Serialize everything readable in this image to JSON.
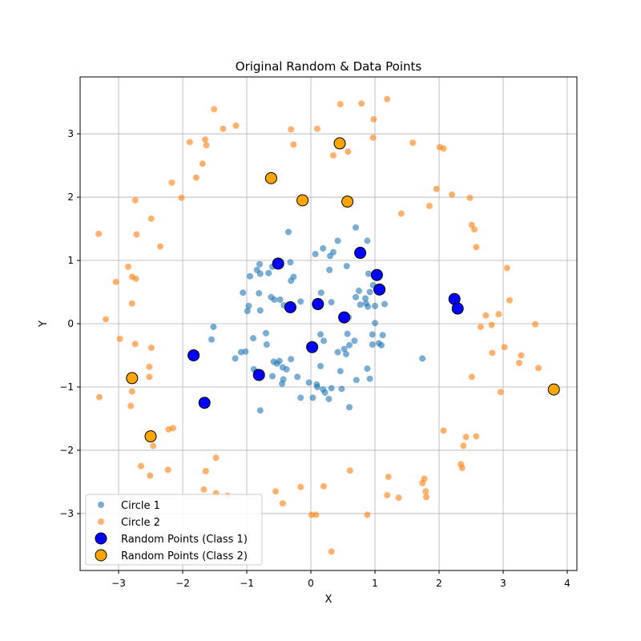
{
  "chart_data": {
    "type": "scatter",
    "title": "Original Random & Data Points",
    "xlabel": "X",
    "ylabel": "Y",
    "xlim": [
      -3.6,
      4.15
    ],
    "ylim": [
      -3.9,
      3.9
    ],
    "xticks": [
      -3,
      -2,
      -1,
      0,
      1,
      2,
      3,
      4
    ],
    "yticks": [
      -3,
      -2,
      -1,
      0,
      1,
      2,
      3
    ],
    "grid": true,
    "legend_position": "lower-left",
    "colors": {
      "circle1": "#1f77b4",
      "circle2": "#ff7f0e",
      "random_class1": "#0000ff",
      "random_class2": "#ffa500"
    },
    "series": [
      {
        "name": "Circle 1",
        "points": [
          [
            -0.8,
            0.94
          ],
          [
            -0.84,
            0.85
          ],
          [
            -0.79,
            0.79
          ],
          [
            -0.66,
            0.8
          ],
          [
            -0.6,
            0.9
          ],
          [
            -0.51,
            0.98
          ],
          [
            -0.32,
            0.97
          ],
          [
            -0.35,
            1.45
          ],
          [
            -0.27,
            0.74
          ],
          [
            -0.31,
            0.68
          ],
          [
            -1.06,
            0.49
          ],
          [
            -0.95,
            0.75
          ],
          [
            -0.97,
            0.28
          ],
          [
            -0.81,
            0.48
          ],
          [
            -0.62,
            0.42
          ],
          [
            -0.57,
            0.38
          ],
          [
            -0.48,
            0.38
          ],
          [
            -0.42,
            0.29
          ],
          [
            -0.16,
            0.35
          ],
          [
            -0.79,
            0.21
          ],
          [
            -0.99,
            0.2
          ],
          [
            -0.9,
            -0.23
          ],
          [
            -0.7,
            -0.15
          ],
          [
            -0.69,
            -0.33
          ],
          [
            -1.52,
            -0.05
          ],
          [
            -1.55,
            -0.25
          ],
          [
            -1.18,
            -0.55
          ],
          [
            -1.09,
            -0.45
          ],
          [
            -1.02,
            -0.44
          ],
          [
            -0.89,
            -0.72
          ],
          [
            -0.85,
            -0.76
          ],
          [
            -0.58,
            -0.6
          ],
          [
            -0.49,
            -0.59
          ],
          [
            -0.53,
            -0.63
          ],
          [
            -0.44,
            -0.69
          ],
          [
            -0.38,
            -0.72
          ],
          [
            -0.31,
            -0.56
          ],
          [
            -0.6,
            -0.83
          ],
          [
            -0.43,
            -0.88
          ],
          [
            -0.21,
            -0.84
          ],
          [
            -0.79,
            -1.37
          ],
          [
            -0.16,
            -1.17
          ],
          [
            0.03,
            -1.17
          ],
          [
            -0.03,
            -0.93
          ],
          [
            0.09,
            -0.96
          ],
          [
            0.1,
            -1.0
          ],
          [
            0.19,
            -1.04
          ],
          [
            0.22,
            -1.09
          ],
          [
            0.28,
            -1.19
          ],
          [
            0.32,
            -1.02
          ],
          [
            0.48,
            -1.03
          ],
          [
            0.6,
            -1.32
          ],
          [
            0.46,
            -0.75
          ],
          [
            0.15,
            -0.67
          ],
          [
            0.15,
            -0.17
          ],
          [
            0.2,
            -0.27
          ],
          [
            0.42,
            -0.45
          ],
          [
            0.52,
            -0.4
          ],
          [
            0.55,
            -0.48
          ],
          [
            0.57,
            -0.16
          ],
          [
            0.6,
            -0.34
          ],
          [
            0.68,
            -0.27
          ],
          [
            0.71,
            -0.89
          ],
          [
            0.88,
            -0.71
          ],
          [
            0.92,
            -0.87
          ],
          [
            0.96,
            -0.17
          ],
          [
            0.96,
            -0.33
          ],
          [
            1.06,
            -0.31
          ],
          [
            1.1,
            -0.34
          ],
          [
            1.12,
            -0.18
          ],
          [
            1.74,
            -0.55
          ],
          [
            0.07,
            1.1
          ],
          [
            0.19,
            1.19
          ],
          [
            0.3,
            1.07
          ],
          [
            0.35,
            1.13
          ],
          [
            0.42,
            1.31
          ],
          [
            0.56,
            0.91
          ],
          [
            0.7,
            1.52
          ],
          [
            0.88,
            1.31
          ],
          [
            0.29,
            0.85
          ],
          [
            0.32,
            0.34
          ],
          [
            0.16,
            0.49
          ],
          [
            0.59,
            0.1
          ],
          [
            0.7,
            0.42
          ],
          [
            0.75,
            0.52
          ],
          [
            0.77,
            0.3
          ],
          [
            0.85,
            0.4
          ],
          [
            0.86,
            0.32
          ],
          [
            0.89,
            0.27
          ],
          [
            0.92,
            0.5
          ],
          [
            0.97,
            0.61
          ],
          [
            1.0,
            0.28
          ],
          [
            1.0,
            0.01
          ],
          [
            1.15,
            0.31
          ],
          [
            0.9,
            0.79
          ],
          [
            -0.45,
            -0.95
          ]
        ]
      },
      {
        "name": "Circle 2",
        "points": [
          [
            -1.51,
            3.39
          ],
          [
            -1.37,
            3.08
          ],
          [
            -1.17,
            3.13
          ],
          [
            -1.89,
            2.87
          ],
          [
            -1.65,
            2.91
          ],
          [
            -1.63,
            2.82
          ],
          [
            -1.69,
            2.53
          ],
          [
            -1.79,
            2.31
          ],
          [
            -2.17,
            2.23
          ],
          [
            -2.02,
            1.99
          ],
          [
            -2.74,
            1.95
          ],
          [
            -2.49,
            1.66
          ],
          [
            -2.72,
            1.41
          ],
          [
            -2.35,
            1.22
          ],
          [
            -3.31,
            1.42
          ],
          [
            -2.85,
            0.9
          ],
          [
            -2.79,
            0.74
          ],
          [
            -2.73,
            0.71
          ],
          [
            -3.04,
            0.66
          ],
          [
            -2.79,
            0.32
          ],
          [
            -3.2,
            0.07
          ],
          [
            -2.98,
            -0.24
          ],
          [
            -2.74,
            -0.32
          ],
          [
            -2.49,
            -0.38
          ],
          [
            -2.52,
            -0.68
          ],
          [
            -2.52,
            -0.84
          ],
          [
            -2.79,
            -1.07
          ],
          [
            -2.81,
            -1.3
          ],
          [
            -3.3,
            -1.16
          ],
          [
            -2.22,
            -1.67
          ],
          [
            -2.15,
            -1.65
          ],
          [
            -2.46,
            -1.93
          ],
          [
            -2.65,
            -2.25
          ],
          [
            -2.23,
            -2.31
          ],
          [
            -2.51,
            -2.4
          ],
          [
            -1.64,
            -2.33
          ],
          [
            -1.48,
            -2.12
          ],
          [
            -1.48,
            -2.68
          ],
          [
            -1.67,
            -2.62
          ],
          [
            -1.3,
            -2.72
          ],
          [
            -0.55,
            -2.65
          ],
          [
            -0.44,
            -2.84
          ],
          [
            -0.16,
            -2.58
          ],
          [
            0.2,
            -2.57
          ],
          [
            0.01,
            -3.02
          ],
          [
            0.08,
            -3.02
          ],
          [
            0.32,
            -3.6
          ],
          [
            0.61,
            -2.32
          ],
          [
            0.88,
            -3.02
          ],
          [
            1.21,
            -2.42
          ],
          [
            1.19,
            -2.71
          ],
          [
            1.37,
            -2.75
          ],
          [
            1.74,
            -2.52
          ],
          [
            1.77,
            -2.45
          ],
          [
            1.79,
            -2.65
          ],
          [
            1.8,
            -2.74
          ],
          [
            2.34,
            -2.22
          ],
          [
            2.36,
            -2.28
          ],
          [
            2.38,
            -1.93
          ],
          [
            2.42,
            -1.79
          ],
          [
            2.58,
            -1.78
          ],
          [
            2.07,
            -1.69
          ],
          [
            2.51,
            -0.84
          ],
          [
            2.83,
            -0.46
          ],
          [
            3.02,
            -0.37
          ],
          [
            3.25,
            -0.62
          ],
          [
            3.28,
            -0.5
          ],
          [
            2.96,
            -1.08
          ],
          [
            3.55,
            -0.7
          ],
          [
            3.5,
            -0.01
          ],
          [
            2.65,
            -0.05
          ],
          [
            2.82,
            -0.02
          ],
          [
            2.73,
            0.13
          ],
          [
            2.93,
            0.15
          ],
          [
            3.1,
            0.37
          ],
          [
            3.06,
            0.88
          ],
          [
            2.58,
            1.21
          ],
          [
            2.51,
            1.56
          ],
          [
            2.55,
            1.49
          ],
          [
            2.48,
            1.99
          ],
          [
            2.2,
            2.04
          ],
          [
            1.96,
            2.13
          ],
          [
            1.85,
            1.86
          ],
          [
            1.41,
            1.74
          ],
          [
            2.01,
            2.79
          ],
          [
            2.07,
            2.77
          ],
          [
            1.59,
            2.86
          ],
          [
            1.19,
            3.55
          ],
          [
            0.98,
            3.23
          ],
          [
            0.97,
            2.94
          ],
          [
            0.79,
            3.48
          ],
          [
            0.46,
            3.47
          ],
          [
            0.58,
            2.72
          ],
          [
            0.35,
            2.66
          ],
          [
            0.1,
            3.08
          ],
          [
            -0.31,
            3.07
          ],
          [
            -0.27,
            2.83
          ]
        ]
      },
      {
        "name": "Random Points (Class 1)",
        "points": [
          [
            -0.51,
            0.95
          ],
          [
            0.77,
            1.12
          ],
          [
            1.03,
            0.77
          ],
          [
            1.07,
            0.54
          ],
          [
            -0.32,
            0.26
          ],
          [
            0.11,
            0.31
          ],
          [
            0.52,
            0.1
          ],
          [
            2.24,
            0.39
          ],
          [
            2.29,
            0.24
          ],
          [
            0.02,
            -0.37
          ],
          [
            -1.83,
            -0.5
          ],
          [
            -0.81,
            -0.81
          ],
          [
            -1.66,
            -1.25
          ]
        ]
      },
      {
        "name": "Random Points (Class 2)",
        "points": [
          [
            0.45,
            2.85
          ],
          [
            -0.62,
            2.3
          ],
          [
            -0.13,
            1.95
          ],
          [
            0.57,
            1.93
          ],
          [
            -2.79,
            -0.86
          ],
          [
            -2.5,
            -1.78
          ],
          [
            3.79,
            -1.04
          ]
        ]
      }
    ]
  }
}
